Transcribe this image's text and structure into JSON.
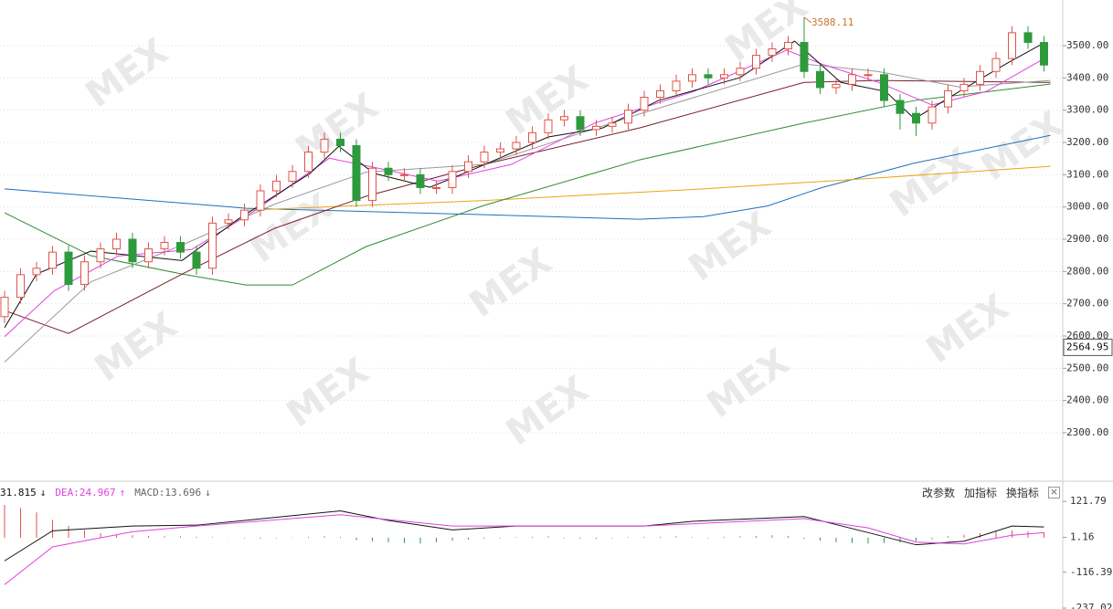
{
  "chart_data": [
    {
      "type": "candlestick",
      "watermark": "MEX",
      "up_color": "#e0534a",
      "down_color": "#2e9a3c",
      "open": [
        2660,
        2720,
        2790,
        2810,
        2860,
        2760,
        2830,
        2870,
        2900,
        2830,
        2870,
        2890,
        2860,
        2810,
        2950,
        2960,
        2990,
        3050,
        3080,
        3110,
        3170,
        3210,
        3190,
        3020,
        3120,
        3100,
        3100,
        3060,
        3060,
        3110,
        3140,
        3170,
        3180,
        3200,
        3230,
        3270,
        3280,
        3240,
        3250,
        3260,
        3300,
        3340,
        3360,
        3390,
        3410,
        3400,
        3410,
        3430,
        3470,
        3490,
        3510,
        3420,
        3370,
        3380,
        3410,
        3410,
        3330,
        3290,
        3260,
        3310,
        3360,
        3380,
        3420,
        3460,
        3540,
        3510
      ],
      "close": [
        2720,
        2790,
        2810,
        2860,
        2760,
        2830,
        2870,
        2900,
        2830,
        2870,
        2890,
        2860,
        2810,
        2950,
        2960,
        2990,
        3050,
        3080,
        3110,
        3170,
        3210,
        3190,
        3020,
        3120,
        3100,
        3100,
        3060,
        3060,
        3110,
        3140,
        3170,
        3180,
        3200,
        3230,
        3270,
        3280,
        3240,
        3250,
        3260,
        3300,
        3340,
        3360,
        3390,
        3410,
        3400,
        3410,
        3430,
        3470,
        3490,
        3510,
        3420,
        3370,
        3380,
        3410,
        3410,
        3330,
        3290,
        3260,
        3310,
        3360,
        3380,
        3420,
        3460,
        3540,
        3510,
        3440
      ],
      "high": [
        2740,
        2810,
        2830,
        2880,
        2880,
        2850,
        2890,
        2920,
        2920,
        2890,
        2910,
        2910,
        2880,
        2970,
        2980,
        3010,
        3070,
        3100,
        3130,
        3190,
        3230,
        3230,
        3210,
        3140,
        3140,
        3120,
        3120,
        3080,
        3130,
        3160,
        3190,
        3200,
        3220,
        3250,
        3290,
        3300,
        3300,
        3270,
        3280,
        3320,
        3360,
        3380,
        3410,
        3430,
        3430,
        3430,
        3450,
        3490,
        3510,
        3530,
        3588.11,
        3440,
        3400,
        3430,
        3430,
        3430,
        3350,
        3310,
        3330,
        3380,
        3400,
        3440,
        3480,
        3560,
        3560,
        3530
      ],
      "low": [
        2640,
        2700,
        2770,
        2790,
        2740,
        2740,
        2810,
        2850,
        2810,
        2810,
        2850,
        2840,
        2790,
        2790,
        2930,
        2940,
        2970,
        3030,
        3060,
        3090,
        3150,
        3170,
        3000,
        3000,
        3080,
        3080,
        3040,
        3040,
        3040,
        3090,
        3120,
        3150,
        3160,
        3180,
        3210,
        3250,
        3220,
        3220,
        3230,
        3240,
        3280,
        3320,
        3340,
        3370,
        3380,
        3380,
        3390,
        3410,
        3450,
        3470,
        3400,
        3350,
        3350,
        3360,
        3390,
        3310,
        3240,
        3220,
        3240,
        3290,
        3340,
        3360,
        3400,
        3440,
        3490,
        3420
      ],
      "lines": [
        {
          "color": "#1f6fbf",
          "x": [
            0,
            15.1,
            30,
            39.7,
            43.7,
            47.7,
            51.1,
            56.9,
            65.4
          ],
          "values": [
            3056,
            2996,
            2976,
            2962,
            2970,
            3003,
            3060,
            3136,
            3222
          ]
        },
        {
          "color": "#e8a317",
          "x": [
            15.1,
            30,
            43.7,
            54.6,
            65.4
          ],
          "values": [
            2990,
            3020,
            3056,
            3090,
            3126
          ]
        },
        {
          "color": "#2e8b2e",
          "x": [
            0,
            5.4,
            11.1,
            15.1,
            18,
            22.6,
            30,
            39.7,
            50,
            56.9,
            65.4
          ],
          "values": [
            2982,
            2849,
            2792,
            2758,
            2758,
            2877,
            3005,
            3146,
            3260,
            3330,
            3381
          ]
        },
        {
          "color": "#7a1f2b",
          "x": [
            0,
            4,
            11.1,
            16.9,
            22.6,
            30,
            39.7,
            50,
            54.6,
            65.4
          ],
          "values": [
            2679,
            2608,
            2792,
            2934,
            3033,
            3132,
            3245,
            3386,
            3392,
            3386
          ]
        },
        {
          "color": "#999999",
          "x": [
            0,
            5.4,
            11.1,
            16.9,
            22.6,
            30,
            39.7,
            50,
            54.6,
            59.7,
            65.4
          ],
          "values": [
            2519,
            2768,
            2882,
            3009,
            3108,
            3132,
            3288,
            3443,
            3420,
            3372,
            3392
          ]
        },
        {
          "color": "#e040e0",
          "x": [
            0,
            3.1,
            7.1,
            11.7,
            15.7,
            20.3,
            23.1,
            27.1,
            31.7,
            36.9,
            43.1,
            48.9,
            51.1,
            54.6,
            58,
            61.4,
            64.9
          ],
          "values": [
            2598,
            2740,
            2848,
            2868,
            2990,
            3151,
            3123,
            3080,
            3132,
            3260,
            3358,
            3486,
            3443,
            3387,
            3316,
            3358,
            3457
          ]
        },
        {
          "color": "#111111",
          "x": [
            0,
            2,
            5.4,
            11.1,
            14.6,
            19.1,
            20.9,
            23.1,
            26.6,
            29.4,
            34,
            37.4,
            40.9,
            46,
            49.4,
            52.3,
            55.1,
            56.9,
            59.7,
            62.6,
            64.9
          ],
          "values": [
            2626,
            2792,
            2863,
            2834,
            2962,
            3104,
            3188,
            3104,
            3061,
            3118,
            3217,
            3245,
            3330,
            3401,
            3514,
            3386,
            3358,
            3273,
            3358,
            3443,
            3506
          ]
        }
      ],
      "ylim": [
        2150,
        3641.5
      ],
      "yticks": [
        {
          "value": 2300,
          "label": "2300.00"
        },
        {
          "value": 2400,
          "label": "2400.00"
        },
        {
          "value": 2500,
          "label": "2500.00"
        },
        {
          "value": 2600,
          "label": "2600.00"
        },
        {
          "value": 2700,
          "label": "2700.00"
        },
        {
          "value": 2800,
          "label": "2800.00"
        },
        {
          "value": 2900,
          "label": "2900.00"
        },
        {
          "value": 3000,
          "label": "3000.00"
        },
        {
          "value": 3100,
          "label": "3100.00"
        },
        {
          "value": 3200,
          "label": "3200.00"
        },
        {
          "value": 3300,
          "label": "3300.00"
        },
        {
          "value": 3400,
          "label": "3400.00"
        },
        {
          "value": 3500,
          "label": "3500.00"
        }
      ],
      "current_price": 2564.95,
      "grid": true
    },
    {
      "type": "macd",
      "dif": 31.815,
      "dif_arrow": "↓",
      "dea_label": "DEA:",
      "dea": 24.967,
      "dea_arrow": "↑",
      "macd_label": "MACD:",
      "macd": 13.696,
      "macd_arrow": "↓",
      "buttons": [
        "改参数",
        "加指标",
        "换指标"
      ],
      "close": "×",
      "histogram": [
        110,
        100,
        85,
        60,
        40,
        25,
        15,
        10,
        8,
        6,
        5,
        4,
        3,
        2,
        -1,
        -2,
        -3,
        -2,
        1,
        3,
        5,
        3,
        -8,
        -12,
        -15,
        -18,
        -20,
        -15,
        -10,
        -6,
        -3,
        -2,
        2,
        3,
        4,
        -2,
        -3,
        -4,
        -2,
        2,
        3,
        3,
        4,
        2,
        -2,
        3,
        4,
        6,
        8,
        6,
        -4,
        -10,
        -15,
        -18,
        -20,
        -18,
        -15,
        -12,
        -5,
        5,
        10,
        15,
        20,
        25,
        22,
        18
      ],
      "dif_line": {
        "color": "#111111",
        "x": [
          0,
          3,
          8,
          12,
          21,
          24,
          28,
          32,
          40,
          43,
          50,
          54,
          57,
          60,
          63,
          65
        ],
        "values": [
          -78,
          23,
          39,
          42,
          90,
          58,
          26,
          39,
          39,
          55,
          71,
          17,
          -24,
          -12,
          39,
          36
        ]
      },
      "dea_line": {
        "color": "#e040e0",
        "x": [
          0,
          3,
          8,
          12,
          21,
          28,
          40,
          50,
          54,
          57,
          60,
          63,
          65
        ],
        "values": [
          -158,
          -31,
          20,
          39,
          77,
          39,
          39,
          64,
          33,
          -15,
          -21,
          8,
          17
        ]
      },
      "ylim": [
        -240,
        190
      ],
      "yticks": [
        121.79,
        1.16,
        -116.39,
        -237.02
      ]
    }
  ]
}
